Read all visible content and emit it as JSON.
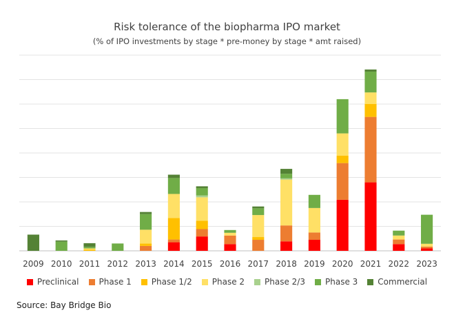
{
  "chart_data": {
    "type": "bar",
    "stacked": true,
    "title": "Risk tolerance of the biopharma IPO market",
    "subtitle": "(% of IPO investments by stage * pre-money by stage * amt raised)",
    "xlabel": "",
    "ylabel": "",
    "ylim": [
      0,
      64
    ],
    "grid": true,
    "legend_position": "bottom",
    "categories": [
      "2009",
      "2010",
      "2011",
      "2012",
      "2013",
      "2014",
      "2015",
      "2016",
      "2017",
      "2018",
      "2019",
      "2020",
      "2021",
      "2022",
      "2023"
    ],
    "series": [
      {
        "name": "Preclinical",
        "color": "#ff0000",
        "values": [
          0,
          0,
          0,
          0,
          0,
          2.8,
          4.7,
          2.2,
          0,
          3.1,
          3.6,
          16.7,
          22.4,
          2.2,
          0.8
        ]
      },
      {
        "name": "Phase 1",
        "color": "#ed7d31",
        "values": [
          0,
          0,
          0,
          0,
          1.6,
          0.9,
          2.4,
          2.8,
          3.6,
          5.2,
          2.4,
          12.0,
          21.4,
          1.5,
          0.6
        ]
      },
      {
        "name": "Phase 1/2",
        "color": "#ffc000",
        "values": [
          0,
          0,
          0.4,
          0,
          0.8,
          7.0,
          2.7,
          0,
          0.9,
          0,
          0,
          2.4,
          4.2,
          0,
          0
        ]
      },
      {
        "name": "Phase 2",
        "color": "#ffe066",
        "values": [
          0,
          0,
          0.4,
          0,
          4.5,
          7.9,
          7.7,
          0.9,
          7.2,
          15.0,
          8.0,
          7.3,
          3.8,
          1.3,
          0.9
        ]
      },
      {
        "name": "Phase 2/3",
        "color": "#a9d18e",
        "values": [
          0,
          0,
          0,
          0,
          0,
          0,
          0.6,
          0,
          0,
          0.4,
          0,
          0,
          0,
          0,
          0
        ]
      },
      {
        "name": "Phase 3",
        "color": "#70ad47",
        "values": [
          0,
          3.0,
          0.5,
          2.4,
          5.1,
          5.2,
          2.4,
          0.9,
          2.2,
          1.5,
          4.3,
          11.2,
          6.8,
          1.6,
          9.5
        ]
      },
      {
        "name": "Commercial",
        "color": "#548235",
        "values": [
          5.3,
          0.4,
          1.2,
          0,
          0.7,
          1.1,
          0.6,
          0,
          0.6,
          1.6,
          0,
          0,
          0.7,
          0,
          0
        ]
      }
    ]
  },
  "source": "Source: Bay Bridge Bio"
}
